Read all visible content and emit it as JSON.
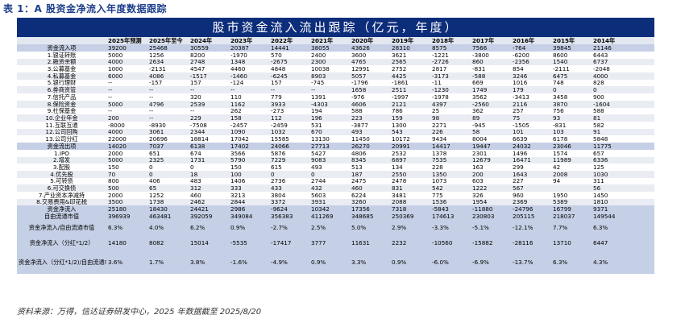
{
  "caption": "表 1：A 股资金净流入年度数据跟踪",
  "table_title": "股市资金流入流出跟踪（亿元，年度）",
  "columns": [
    "",
    "2025年预测",
    "2025年至今",
    "2024年",
    "2023年",
    "2022年",
    "2021年",
    "2020年",
    "2019年",
    "2018年",
    "2017年",
    "2016年",
    "2015年",
    "2014年"
  ],
  "rows": [
    {
      "type": "summary",
      "label": "资金流入项",
      "values": [
        "39200",
        "25468",
        "30559",
        "20387",
        "14441",
        "38055",
        "43626",
        "28310",
        "8575",
        "7566",
        "-764",
        "39845",
        "21146"
      ]
    },
    {
      "type": "body",
      "label": "1.银证转账",
      "values": [
        "5000",
        "1256",
        "8200",
        "-1970",
        "570",
        "2400",
        "3600",
        "3621",
        "-1221",
        "-3800",
        "-6200",
        "8600",
        "6443"
      ]
    },
    {
      "type": "body",
      "label": "2.融资余额",
      "values": [
        "4000",
        "2634",
        "2748",
        "1348",
        "-2675",
        "2300",
        "4765",
        "2565",
        "-2726",
        "860",
        "-2356",
        "1540",
        "6737"
      ]
    },
    {
      "type": "body",
      "label": "3.公募基金",
      "values": [
        "1000",
        "-2131",
        "4547",
        "4460",
        "4848",
        "10038",
        "12991",
        "2752",
        "2817",
        "-831",
        "854",
        "-2111",
        "-2048"
      ]
    },
    {
      "type": "body",
      "label": "4.私募基金",
      "values": [
        "6000",
        "4086",
        "-1517",
        "-1460",
        "-6245",
        "8903",
        "5057",
        "4425",
        "-3173",
        "-588",
        "3246",
        "6475",
        "4000"
      ]
    },
    {
      "type": "body",
      "label": "5.银行理财",
      "values": [
        "--",
        "-157",
        "157",
        "-124",
        "157",
        "-745",
        "-1796",
        "-1861",
        "-11",
        "669",
        "1016",
        "748",
        "828"
      ]
    },
    {
      "type": "body",
      "label": "6.券商资管",
      "values": [
        "--",
        "--",
        "--",
        "--",
        "--",
        "--",
        "1658",
        "2511",
        "-1230",
        "1749",
        "179",
        "0",
        "0"
      ]
    },
    {
      "type": "body",
      "label": "7.信托产品",
      "values": [
        "--",
        "--",
        "320",
        "110",
        "779",
        "1391",
        "-976",
        "-1997",
        "-1978",
        "3562",
        "-3413",
        "3458",
        "900"
      ]
    },
    {
      "type": "body",
      "label": "8.保险资金",
      "values": [
        "5000",
        "4796",
        "2539",
        "1162",
        "3933",
        "-4303",
        "4606",
        "2121",
        "4397",
        "-2560",
        "2116",
        "3870",
        "-1604"
      ]
    },
    {
      "type": "body",
      "label": "9.社保基金",
      "values": [
        "--",
        "--",
        "--",
        "262",
        "-273",
        "194",
        "588",
        "786",
        "25",
        "362",
        "257",
        "756",
        "588"
      ]
    },
    {
      "type": "body",
      "label": "10.企业年金",
      "values": [
        "200",
        "--",
        "229",
        "158",
        "112",
        "196",
        "223",
        "159",
        "98",
        "89",
        "75",
        "93",
        "81"
      ]
    },
    {
      "type": "body",
      "label": "11.互联互通",
      "values": [
        "-8000",
        "-8930",
        "-7508",
        "-2457",
        "-2459",
        "531",
        "-3877",
        "1300",
        "2271",
        "-945",
        "-1505",
        "-831",
        "582"
      ]
    },
    {
      "type": "body",
      "label": "12.公司回购",
      "values": [
        "4000",
        "3061",
        "2344",
        "1090",
        "1032",
        "670",
        "493",
        "543",
        "226",
        "58",
        "101",
        "103",
        "91"
      ]
    },
    {
      "type": "body",
      "label": "13.公司分红",
      "values": [
        "22000",
        "20696",
        "18814",
        "17042",
        "15585",
        "13130",
        "11450",
        "10172",
        "9434",
        "8004",
        "6639",
        "6178",
        "5848"
      ]
    },
    {
      "type": "summary",
      "label": "资金流出项",
      "values": [
        "14020",
        "7037",
        "6138",
        "17402",
        "24066",
        "27713",
        "26270",
        "20991",
        "14417",
        "19447",
        "24032",
        "23046",
        "11775"
      ]
    },
    {
      "type": "body",
      "label": "1.IPO",
      "values": [
        "2000",
        "651",
        "674",
        "3566",
        "5876",
        "5427",
        "4806",
        "2532",
        "1378",
        "2301",
        "1496",
        "1574",
        "657"
      ]
    },
    {
      "type": "body",
      "label": "2.增发",
      "values": [
        "5000",
        "2325",
        "1731",
        "5790",
        "7229",
        "9083",
        "8345",
        "6897",
        "7535",
        "12679",
        "16471",
        "11989",
        "6336"
      ]
    },
    {
      "type": "body",
      "label": "3.配股",
      "values": [
        "150",
        "0",
        "0",
        "150",
        "615",
        "493",
        "513",
        "134",
        "228",
        "163",
        "299",
        "42",
        "125"
      ]
    },
    {
      "type": "body",
      "label": "4.优先股",
      "values": [
        "70",
        "0",
        "18",
        "100",
        "0",
        "0",
        "187",
        "2550",
        "1350",
        "200",
        "1643",
        "2008",
        "1030"
      ]
    },
    {
      "type": "body",
      "label": "5.可转债",
      "values": [
        "800",
        "406",
        "483",
        "1406",
        "2736",
        "2744",
        "2475",
        "2478",
        "1073",
        "603",
        "227",
        "94",
        "311"
      ]
    },
    {
      "type": "body",
      "label": "6.可交换债",
      "values": [
        "500",
        "65",
        "312",
        "333",
        "433",
        "432",
        "460",
        "831",
        "542",
        "1222",
        "567",
        "",
        "56"
      ]
    },
    {
      "type": "body",
      "label": "7.产业资本净减持",
      "values": [
        "2000",
        "1252",
        "460",
        "3213",
        "3804",
        "5603",
        "6224",
        "3481",
        "775",
        "326",
        "960",
        "1950",
        "1450"
      ]
    },
    {
      "type": "body",
      "label": "8.交易费用&印花税",
      "values": [
        "3500",
        "1738",
        "2462",
        "2844",
        "3372",
        "3931",
        "3260",
        "2088",
        "1536",
        "1954",
        "2369",
        "5389",
        "1810"
      ]
    },
    {
      "type": "summary",
      "label": "资金净流入",
      "values": [
        "25180",
        "18430",
        "24421",
        "2986",
        "-9624",
        "10342",
        "17356",
        "7318",
        "-5843",
        "-11880",
        "-24796",
        "16799",
        "9371"
      ]
    },
    {
      "type": "summary",
      "label": "自由流通市值",
      "values": [
        "396939",
        "463481",
        "392059",
        "349084",
        "356383",
        "411269",
        "348685",
        "250369",
        "174613",
        "230803",
        "205115",
        "218037",
        "149544"
      ]
    },
    {
      "type": "tall2",
      "label": "资金净流入/自由流通市值",
      "values": [
        "6.3%",
        "4.0%",
        "6.2%",
        "0.9%",
        "-2.7%",
        "2.5%",
        "5.0%",
        "2.9%",
        "-3.3%",
        "-5.1%",
        "-12.1%",
        "7.7%",
        "6.3%"
      ]
    },
    {
      "type": "tall2",
      "label": "资金净流入（分红*1/2）",
      "values": [
        "14180",
        "8082",
        "15014",
        "-5535",
        "-17417",
        "3777",
        "11631",
        "2232",
        "-10560",
        "-15882",
        "-28116",
        "13710",
        "6447"
      ]
    },
    {
      "type": "tall3",
      "label": "资金净流入（分红*1/2)/自由流通市值",
      "values": [
        "3.6%",
        "1.7%",
        "3.8%",
        "-1.6%",
        "-4.9%",
        "0.9%",
        "3.3%",
        "0.9%",
        "-6.0%",
        "-6.9%",
        "-13.7%",
        "6.3%",
        "4.3%"
      ]
    }
  ],
  "source": "资料来源：万得，信达证券研发中心，2025 年数据截至 2025/8/20"
}
